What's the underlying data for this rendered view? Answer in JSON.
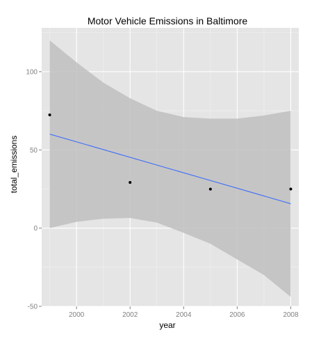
{
  "chart_data": {
    "type": "scatter",
    "title": "Motor Vehicle Emissions in Baltimore",
    "xlabel": "year",
    "ylabel": "total_emissions",
    "xlim": [
      1998.7,
      2008.3
    ],
    "ylim": [
      -50,
      128
    ],
    "x_ticks": [
      2000,
      2002,
      2004,
      2006,
      2008
    ],
    "y_ticks": [
      -50,
      0,
      50,
      100
    ],
    "grid": true,
    "legend": "none",
    "points": [
      {
        "x": 1999,
        "y": 72.4
      },
      {
        "x": 2002,
        "y": 29.2
      },
      {
        "x": 2005,
        "y": 24.9
      },
      {
        "x": 2008,
        "y": 25.0
      }
    ],
    "trend_line": {
      "method": "linear",
      "x": [
        1999,
        2008
      ],
      "y": [
        60.1,
        15.6
      ]
    },
    "confidence_band": {
      "x": [
        1999,
        2000,
        2001,
        2002,
        2003,
        2004,
        2005,
        2006,
        2007,
        2008
      ],
      "upper": [
        120,
        106,
        93,
        83,
        75,
        71,
        70,
        70,
        72,
        75
      ],
      "lower": [
        0,
        4,
        6,
        6.5,
        3.5,
        -3,
        -10,
        -20,
        -30,
        -44
      ]
    },
    "colors": {
      "panel": "#e5e5e5",
      "grid_major": "#ffffff",
      "grid_minor": "#f2f2f2",
      "band": "#c0c0c0",
      "line": "#3366ff",
      "point": "#000000"
    }
  }
}
